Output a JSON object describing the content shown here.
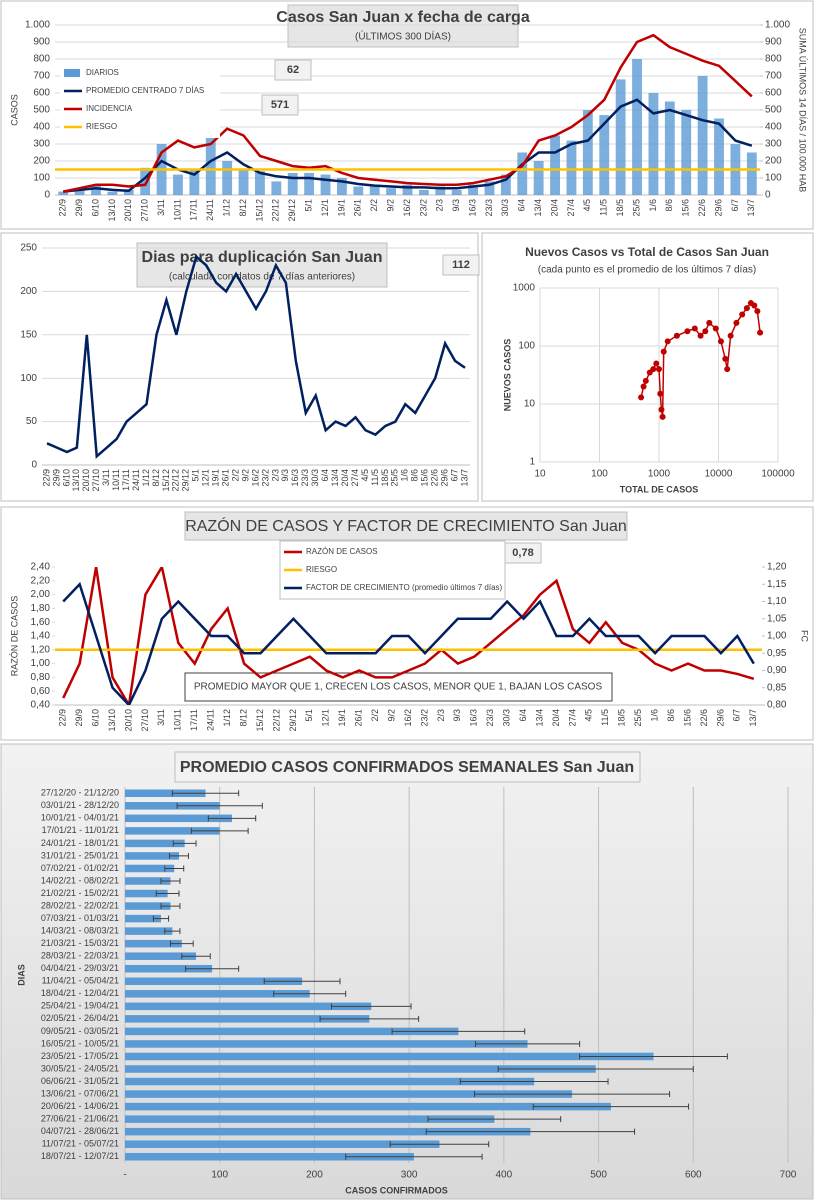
{
  "chart_data": [
    {
      "type": "combo",
      "title": "Casos San Juan x fecha de carga",
      "subtitle": "(ÚLTIMOS 300 DÍAS)",
      "ylabel": "CASOS",
      "y2label": "SUMA ÚLTIMOS 14 DÍAS / 100.000 HAB",
      "categories": [
        "22/9",
        "29/9",
        "6/10",
        "13/10",
        "20/10",
        "27/10",
        "3/11",
        "10/11",
        "17/11",
        "24/11",
        "1/12",
        "8/12",
        "15/12",
        "22/12",
        "29/12",
        "5/1",
        "12/1",
        "19/1",
        "26/1",
        "2/2",
        "9/2",
        "16/2",
        "23/2",
        "2/3",
        "9/3",
        "16/3",
        "23/3",
        "30/3",
        "6/4",
        "13/4",
        "20/4",
        "27/4",
        "4/5",
        "11/5",
        "18/5",
        "25/5",
        "1/6",
        "8/6",
        "15/6",
        "22/6",
        "29/6",
        "6/7",
        "13/7"
      ],
      "ylim": [
        0,
        1000
      ],
      "yticks": [
        0,
        100,
        200,
        300,
        400,
        500,
        600,
        700,
        800,
        900,
        {
          "value": 1000,
          "label": "1.000"
        }
      ],
      "y2lim": [
        0,
        1000
      ],
      "y2ticks": [
        0,
        100,
        200,
        300,
        400,
        500,
        600,
        700,
        800,
        900,
        {
          "value": 1000,
          "label": "1.000"
        }
      ],
      "grid": true,
      "legend": "top-left",
      "series": [
        {
          "name": "DIARIOS",
          "type": "bar",
          "color": "#5b9bd5",
          "values": [
            20,
            40,
            60,
            20,
            30,
            160,
            300,
            120,
            150,
            350,
            200,
            150,
            140,
            80,
            130,
            130,
            120,
            100,
            50,
            60,
            40,
            60,
            30,
            50,
            30,
            60,
            80,
            120,
            250,
            200,
            350,
            320,
            500,
            470,
            680,
            800,
            600,
            550,
            500,
            700,
            450,
            300,
            250
          ]
        },
        {
          "name": "PROMEDIO CENTRADO 7 DÍAS",
          "type": "line",
          "color": "#002060",
          "values": [
            20,
            30,
            40,
            30,
            25,
            100,
            200,
            150,
            120,
            200,
            250,
            180,
            130,
            110,
            100,
            100,
            90,
            80,
            65,
            55,
            50,
            45,
            45,
            40,
            40,
            50,
            60,
            90,
            180,
            250,
            250,
            300,
            320,
            420,
            520,
            560,
            480,
            500,
            470,
            440,
            420,
            320,
            290
          ]
        },
        {
          "name": "INCIDENCIA",
          "type": "line",
          "axis": "y2",
          "color": "#c00000",
          "values": [
            20,
            40,
            60,
            60,
            50,
            60,
            250,
            320,
            280,
            300,
            390,
            350,
            230,
            200,
            170,
            160,
            170,
            130,
            100,
            90,
            80,
            70,
            65,
            60,
            60,
            70,
            90,
            110,
            170,
            320,
            350,
            400,
            470,
            560,
            750,
            900,
            940,
            870,
            830,
            790,
            760,
            670,
            580
          ]
        },
        {
          "name": "RIESGO",
          "type": "hline",
          "axis": "y2",
          "color": "#ffc000",
          "value": 150
        }
      ],
      "annotations": [
        "62",
        "571"
      ]
    },
    {
      "type": "line",
      "title": "Dias para duplicación San Juan",
      "subtitle": "(calculada con datos de 7 días anteriores)",
      "categories": [
        "22/9",
        "29/9",
        "6/10",
        "13/10",
        "20/10",
        "27/10",
        "3/11",
        "10/11",
        "17/11",
        "24/11",
        "1/12",
        "8/12",
        "15/12",
        "22/12",
        "29/12",
        "5/1",
        "12/1",
        "19/1",
        "26/1",
        "2/2",
        "9/2",
        "16/2",
        "23/2",
        "2/3",
        "9/3",
        "16/3",
        "23/3",
        "30/3",
        "6/4",
        "13/4",
        "20/4",
        "27/4",
        "4/5",
        "11/5",
        "18/5",
        "25/5",
        "1/6",
        "8/6",
        "15/6",
        "22/6",
        "29/6",
        "6/7",
        "13/7"
      ],
      "ylim": [
        0,
        250
      ],
      "yticks": [
        0,
        50,
        100,
        150,
        200,
        250
      ],
      "grid": true,
      "series": [
        {
          "type": "line",
          "color": "#002060",
          "values": [
            25,
            20,
            15,
            20,
            150,
            10,
            20,
            30,
            50,
            60,
            70,
            150,
            190,
            150,
            200,
            240,
            230,
            210,
            200,
            220,
            200,
            180,
            200,
            230,
            210,
            120,
            60,
            80,
            40,
            50,
            45,
            55,
            40,
            35,
            45,
            50,
            70,
            60,
            80,
            100,
            140,
            120,
            112
          ]
        }
      ],
      "annotations": [
        "112"
      ]
    },
    {
      "type": "scatter",
      "title": "Nuevos Casos vs Total de Casos San Juan",
      "subtitle": "(cada punto es el promedio de los últimos 7 días)",
      "xlabel": "TOTAL DE CASOS",
      "ylabel": "NUEVOS CASOS",
      "log_x": true,
      "log_y": true,
      "color": "#c00000",
      "grid": true,
      "xlim": [
        10,
        100000
      ],
      "xticks": [
        10,
        100,
        1000,
        10000,
        100000
      ],
      "ylim": [
        1,
        1000
      ],
      "yticks": [
        1,
        10,
        100,
        1000
      ],
      "x": [
        500,
        550,
        600,
        700,
        800,
        900,
        1000,
        1050,
        1100,
        1150,
        1200,
        1400,
        2000,
        3000,
        4000,
        5000,
        6000,
        7000,
        9000,
        11000,
        13000,
        14000,
        16000,
        20000,
        25000,
        30000,
        35000,
        40000,
        45000,
        50000
      ],
      "y": [
        13,
        20,
        25,
        35,
        40,
        50,
        40,
        15,
        8,
        6,
        80,
        120,
        150,
        180,
        200,
        150,
        180,
        250,
        200,
        120,
        60,
        40,
        150,
        250,
        350,
        450,
        550,
        500,
        400,
        170
      ]
    },
    {
      "type": "combo",
      "title": "RAZÓN DE CASOS Y FACTOR DE CRECIMIENTO San Juan",
      "ylabel": "RAZÓN DE CASOS",
      "y2label": "FC",
      "categories": [
        "22/9",
        "29/9",
        "6/10",
        "13/10",
        "20/10",
        "27/10",
        "3/11",
        "10/11",
        "17/11",
        "24/11",
        "1/12",
        "8/12",
        "15/12",
        "22/12",
        "29/12",
        "5/1",
        "12/1",
        "19/1",
        "26/1",
        "2/2",
        "9/2",
        "16/2",
        "23/2",
        "2/3",
        "9/3",
        "16/3",
        "23/3",
        "30/3",
        "6/4",
        "13/4",
        "20/4",
        "27/4",
        "4/5",
        "11/5",
        "18/5",
        "25/5",
        "1/6",
        "8/6",
        "15/6",
        "22/6",
        "29/6",
        "6/7",
        "13/7"
      ],
      "ylim": [
        0.4,
        2.4
      ],
      "yticks": [
        {
          "value": 0.4,
          "label": "0,40"
        },
        {
          "value": 0.6,
          "label": "0,60"
        },
        {
          "value": 0.8,
          "label": "0,80"
        },
        {
          "value": 1.0,
          "label": "1,00"
        },
        {
          "value": 1.2,
          "label": "1,20"
        },
        {
          "value": 1.4,
          "label": "1,40"
        },
        {
          "value": 1.6,
          "label": "1,60"
        },
        {
          "value": 1.8,
          "label": "1,80"
        },
        {
          "value": 2.0,
          "label": "2,00"
        },
        {
          "value": 2.2,
          "label": "2,20"
        },
        {
          "value": 2.4,
          "label": "2,40"
        }
      ],
      "y2lim": [
        0.8,
        1.2
      ],
      "y2ticks": [
        {
          "value": 0.8,
          "label": "0,80"
        },
        {
          "value": 0.85,
          "label": "0,85"
        },
        {
          "value": 0.9,
          "label": "0,90"
        },
        {
          "value": 0.95,
          "label": "0,95"
        },
        {
          "value": 1.0,
          "label": "1,00"
        },
        {
          "value": 1.05,
          "label": "1,05"
        },
        {
          "value": 1.1,
          "label": "1,10"
        },
        {
          "value": 1.15,
          "label": "1,15"
        },
        {
          "value": 1.2,
          "label": "1,20"
        }
      ],
      "grid": false,
      "legend": "top-center",
      "series": [
        {
          "name": "RAZÓN DE CASOS",
          "type": "line",
          "color": "#c00000",
          "values": [
            0.5,
            1.0,
            2.4,
            0.8,
            0.4,
            2.0,
            2.4,
            1.3,
            1.0,
            1.5,
            1.8,
            1.0,
            0.8,
            0.9,
            1.0,
            1.1,
            0.9,
            0.8,
            0.9,
            0.8,
            0.8,
            0.9,
            1.0,
            1.2,
            1.0,
            1.1,
            1.3,
            1.5,
            1.7,
            2.0,
            2.2,
            1.5,
            1.3,
            1.6,
            1.3,
            1.2,
            1.0,
            0.9,
            1.0,
            0.9,
            0.9,
            0.85,
            0.78
          ]
        },
        {
          "name": "RIESGO",
          "type": "hline",
          "color": "#ffc000",
          "value": 1.2
        },
        {
          "name": "FACTOR DE CRECIMIENTO (promedio últimos 7 días)",
          "type": "line",
          "axis": "y2",
          "color": "#002060",
          "values": [
            1.1,
            1.15,
            1.0,
            0.85,
            0.8,
            0.9,
            1.05,
            1.1,
            1.05,
            1.0,
            1.0,
            0.95,
            0.95,
            1.0,
            1.05,
            1.0,
            0.95,
            0.95,
            0.95,
            0.95,
            1.0,
            1.0,
            0.95,
            1.0,
            1.05,
            1.05,
            1.05,
            1.1,
            1.05,
            1.1,
            1.0,
            1.0,
            1.05,
            1.0,
            1.0,
            1.0,
            0.95,
            1.0,
            1.0,
            1.0,
            0.95,
            1.0,
            0.92
          ]
        }
      ],
      "annotations": [
        "0,78"
      ],
      "note": "PROMEDIO MAYOR QUE 1, CRECEN LOS CASOS, MENOR QUE 1, BAJAN LOS CASOS"
    },
    {
      "type": "hbar",
      "title": "PROMEDIO CASOS CONFIRMADOS SEMANALES San Juan",
      "xlabel": "CASOS CONFIRMADOS",
      "ylabel": "DIAS",
      "color": "#5b9bd5",
      "grid": true,
      "xlim": [
        0,
        700
      ],
      "xticks": [
        {
          "value": 0,
          "label": "-"
        },
        100,
        200,
        300,
        400,
        500,
        600,
        700
      ],
      "categories": [
        "27/12/20 - 21/12/20",
        "03/01/21 - 28/12/20",
        "10/01/21 - 04/01/21",
        "17/01/21 - 11/01/21",
        "24/01/21 - 18/01/21",
        "31/01/21 - 25/01/21",
        "07/02/21 - 01/02/21",
        "14/02/21 - 08/02/21",
        "21/02/21 - 15/02/21",
        "28/02/21 - 22/02/21",
        "07/03/21 - 01/03/21",
        "14/03/21 - 08/03/21",
        "21/03/21 - 15/03/21",
        "28/03/21 - 22/03/21",
        "04/04/21 - 29/03/21",
        "11/04/21 - 05/04/21",
        "18/04/21 - 12/04/21",
        "25/04/21 - 19/04/21",
        "02/05/21 - 26/04/21",
        "09/05/21 - 03/05/21",
        "16/05/21 - 10/05/21",
        "23/05/21 - 17/05/21",
        "30/05/21 - 24/05/21",
        "06/06/21 - 31/05/21",
        "13/06/21 - 07/06/21",
        "20/06/21 - 14/06/21",
        "27/06/21 - 21/06/21",
        "04/07/21 - 28/06/21",
        "11/07/21 - 05/07/21",
        "18/07/21 - 12/07/21"
      ],
      "values": [
        85,
        100,
        113,
        100,
        63,
        57,
        52,
        48,
        45,
        48,
        38,
        50,
        60,
        75,
        92,
        187,
        195,
        260,
        258,
        352,
        425,
        558,
        497,
        432,
        472,
        513,
        390,
        428,
        332,
        305
      ],
      "errors": [
        35,
        45,
        25,
        30,
        12,
        10,
        10,
        10,
        12,
        10,
        8,
        8,
        12,
        15,
        28,
        40,
        38,
        42,
        52,
        70,
        55,
        78,
        103,
        78,
        103,
        82,
        70,
        110,
        52,
        72
      ]
    }
  ]
}
